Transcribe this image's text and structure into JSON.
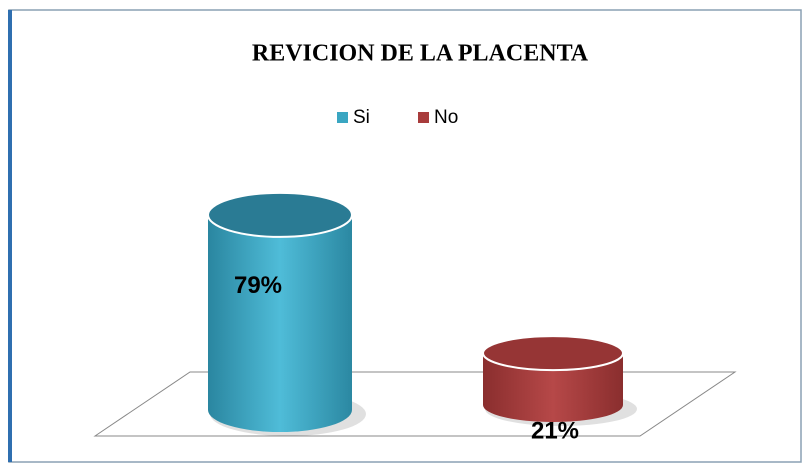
{
  "chart_data": {
    "type": "cylinder",
    "title": "REVICION DE LA PLACENTA",
    "series": [
      {
        "name": "Si",
        "color": "#3aa6c2",
        "values": [
          79
        ],
        "value_labels": [
          "79%"
        ]
      },
      {
        "name": "No",
        "color": "#a83c3c",
        "values": [
          21
        ],
        "value_labels": [
          "21%"
        ]
      }
    ],
    "legend": "top"
  }
}
